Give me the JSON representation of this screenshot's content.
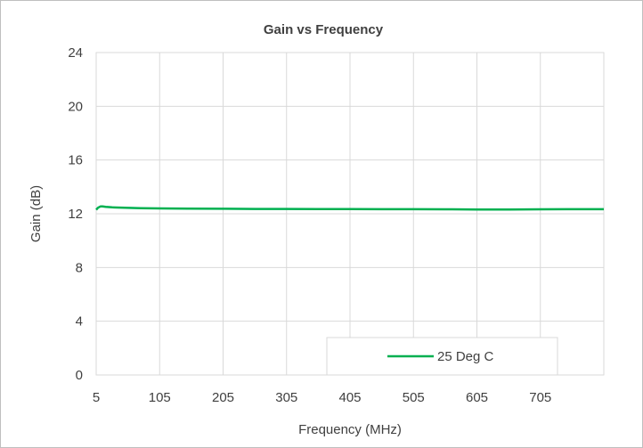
{
  "chart_data": {
    "type": "line",
    "title": "Gain vs Frequency",
    "xlabel": "Frequency (MHz)",
    "ylabel": "Gain (dB)",
    "xlim": [
      5,
      805
    ],
    "ylim": [
      0,
      24
    ],
    "xticks": [
      5,
      105,
      205,
      305,
      405,
      505,
      605,
      705
    ],
    "yticks": [
      0,
      4,
      8,
      12,
      16,
      20,
      24
    ],
    "grid": true,
    "legend_position": "bottom-center",
    "series": [
      {
        "name": "25 Deg C",
        "color": "#00b050",
        "x": [
          5,
          8,
          12,
          15,
          20,
          30,
          50,
          75,
          105,
          150,
          205,
          255,
          305,
          355,
          405,
          455,
          505,
          555,
          605,
          655,
          705,
          755,
          805
        ],
        "y": [
          12.3,
          12.45,
          12.55,
          12.55,
          12.52,
          12.48,
          12.45,
          12.42,
          12.4,
          12.38,
          12.37,
          12.36,
          12.36,
          12.35,
          12.35,
          12.34,
          12.34,
          12.33,
          12.32,
          12.32,
          12.33,
          12.34,
          12.34
        ]
      }
    ]
  }
}
